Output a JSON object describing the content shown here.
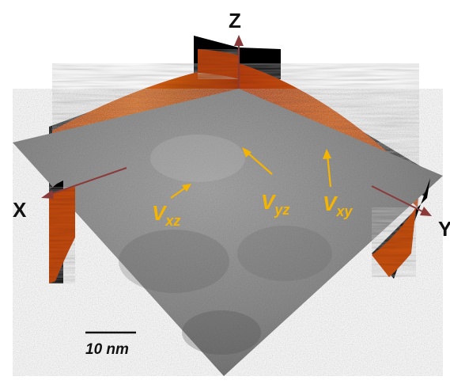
{
  "axes": {
    "x_label": "X",
    "y_label": "Y",
    "z_label": "Z"
  },
  "annotations": {
    "vxz": {
      "main": "V",
      "sub": "xz"
    },
    "vyz": {
      "main": "V",
      "sub": "yz"
    },
    "vxy": {
      "main": "V",
      "sub": "xy"
    }
  },
  "scale_bar": {
    "label": "10 nm",
    "length_nm": 10
  },
  "colors": {
    "axis": "#8b3a3a",
    "annotation": "#f5b400",
    "slice_orange": "#d85a10",
    "slice_dark": "#7a1e00",
    "slice_black": "#000000",
    "plane_gray": "#8e8e8e",
    "text": "#111111"
  }
}
